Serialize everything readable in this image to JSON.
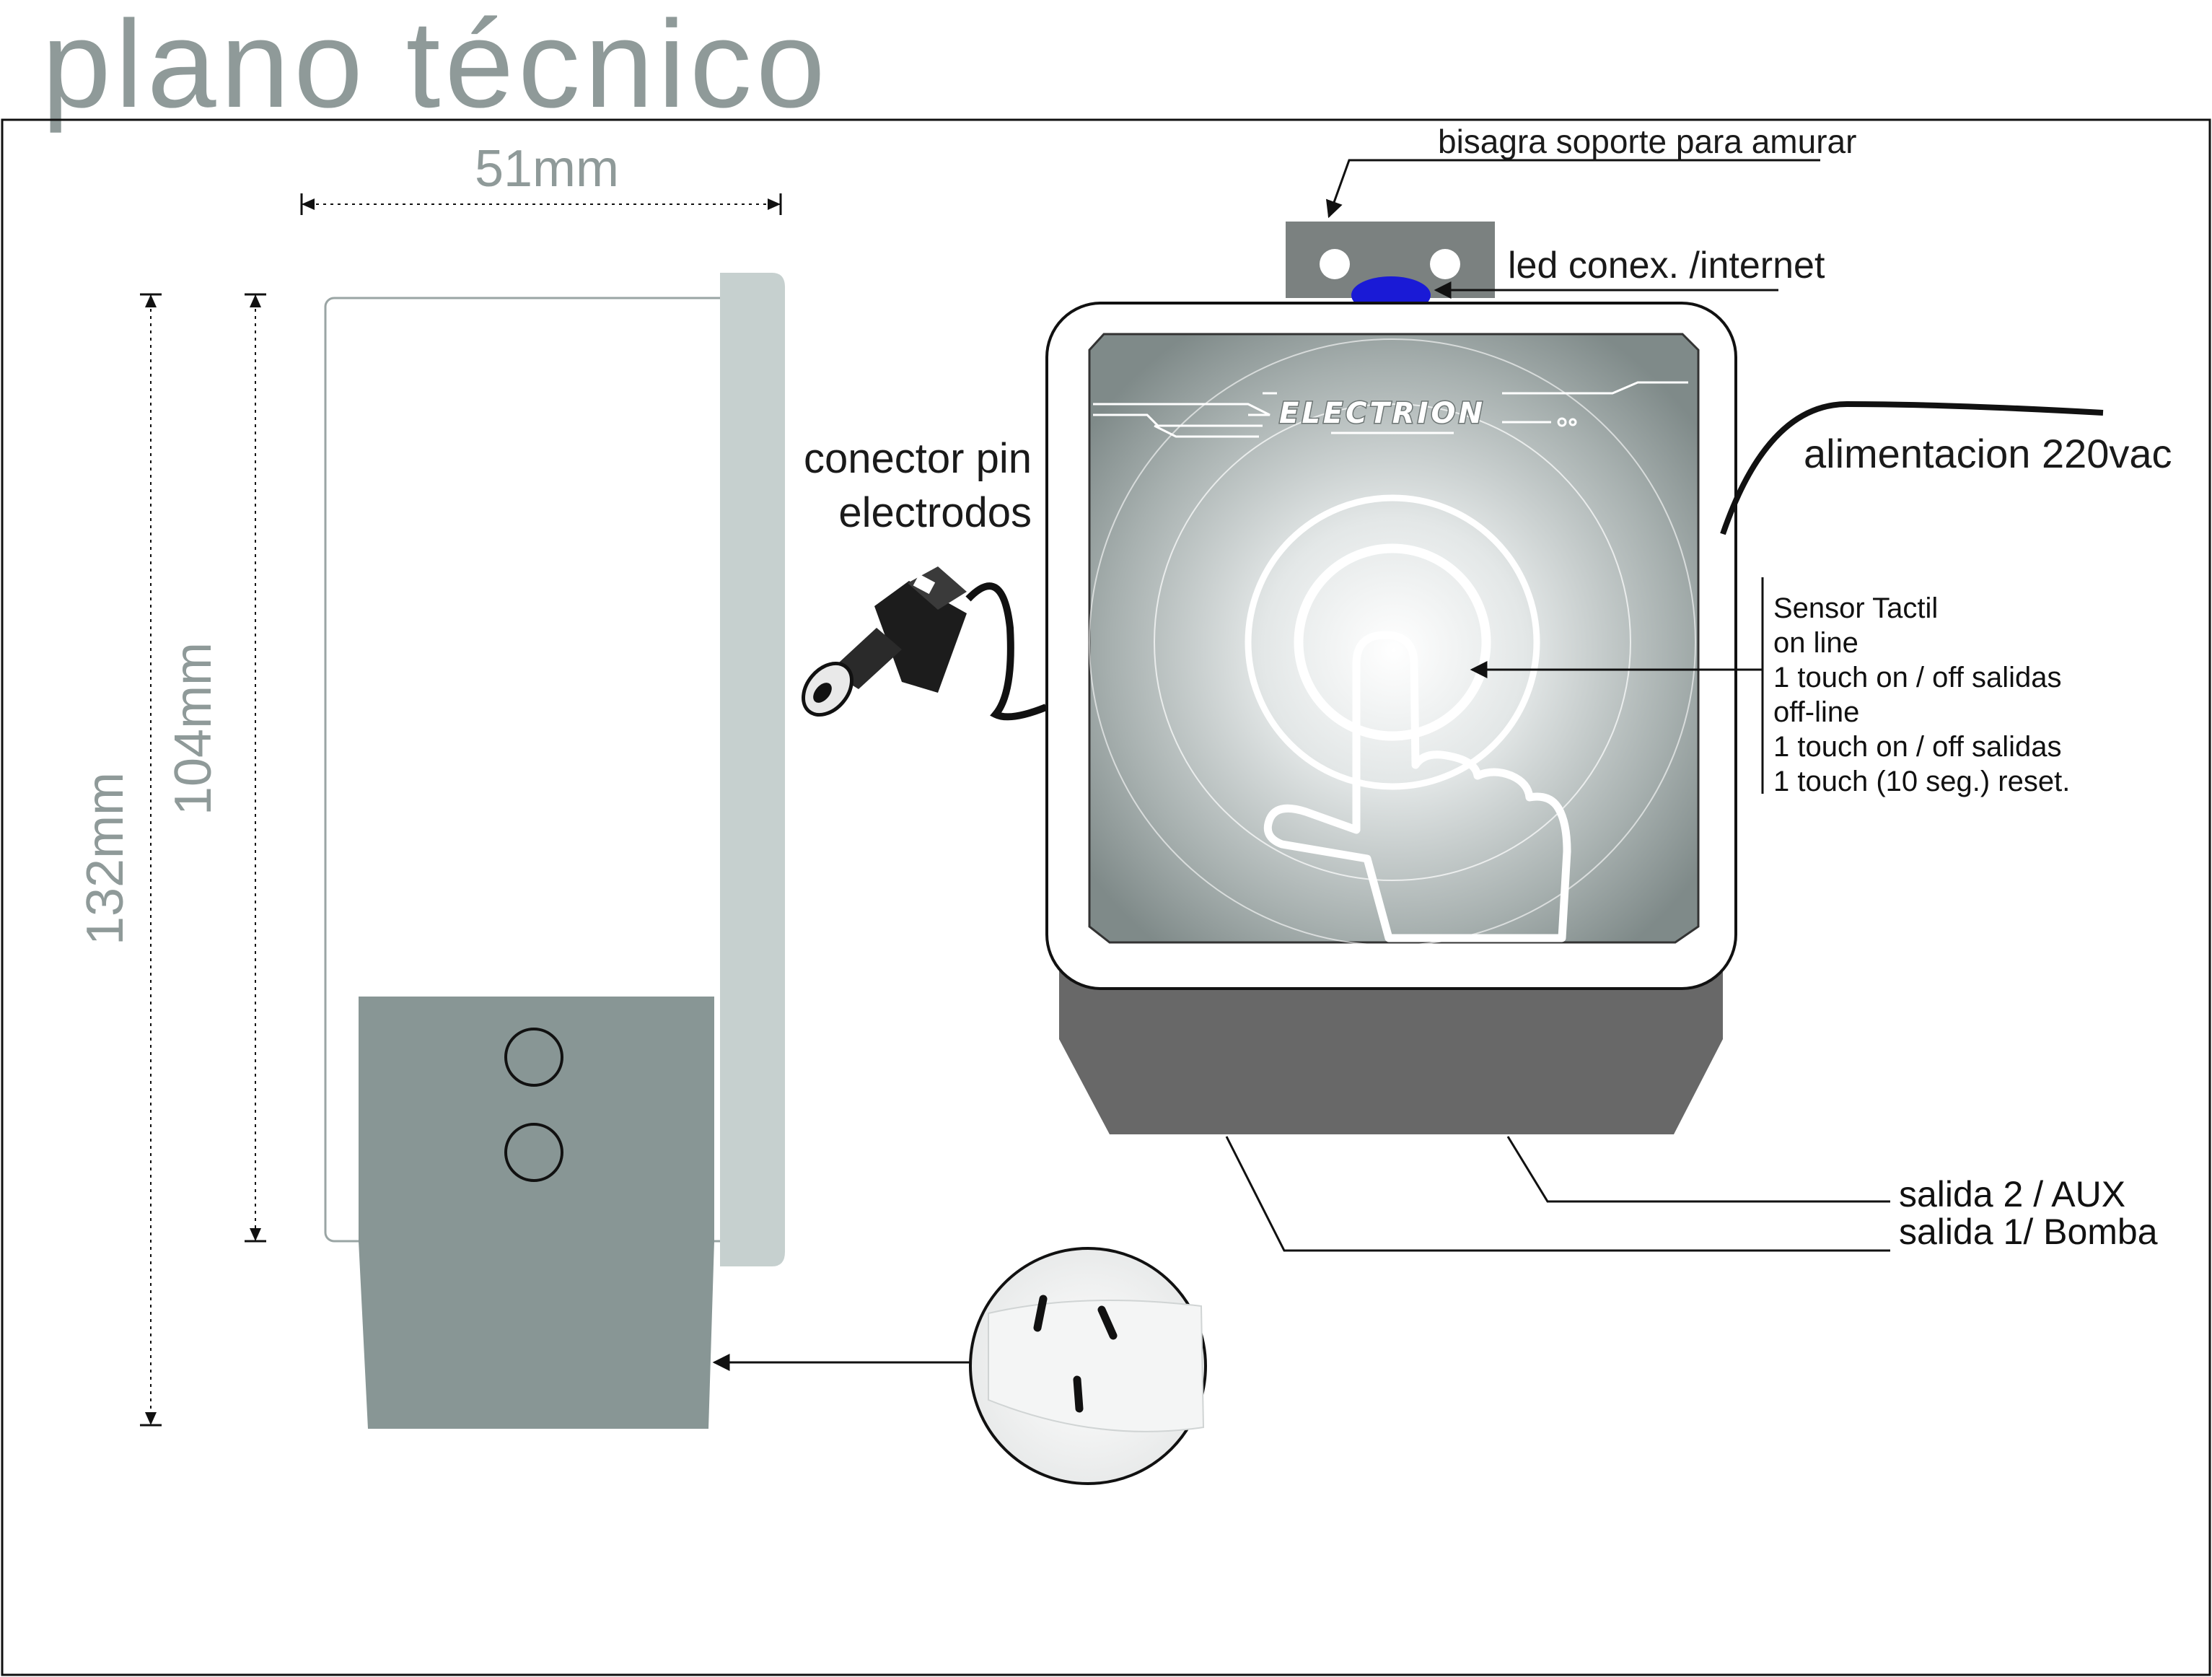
{
  "title": "plano técnico",
  "dimensions": {
    "width": "51mm",
    "height_total": "132mm",
    "height_body": "104mm"
  },
  "brand": "ELECTRION",
  "labels": {
    "hinge": "bisagra soporte para amurar",
    "led": "led  conex. /internet",
    "connector_line1": "conector pin",
    "connector_line2": "electrodos",
    "power": "alimentacion 220vac",
    "output2": "salida 2 / AUX",
    "output1": "salida 1/ Bomba"
  },
  "sensor_notes": [
    "Sensor Tactil",
    "on line",
    "1 touch on / off salidas",
    "off-line",
    "1 touch on / off salidas",
    "1 touch (10 seg.) reset."
  ],
  "colors": {
    "grey_dim": "#8f9a99",
    "panel_side": "#c6d0cf",
    "plug_grey": "#889695",
    "bottom_dark": "#686868",
    "led_blue": "#1a1ad6",
    "hinge_grey": "#7b8180"
  }
}
